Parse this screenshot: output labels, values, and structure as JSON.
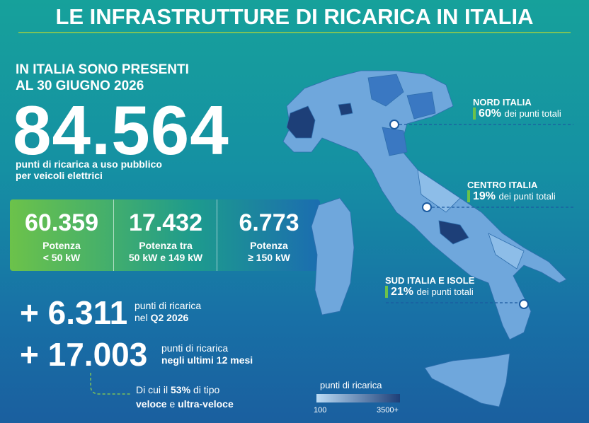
{
  "header": {
    "title": "LE INFRASTRUTTURE DI RICARICA IN ITALIA"
  },
  "intro": {
    "lines": [
      "IN ITALIA SONO PRESENTI",
      "AL 30 GIUGNO 2026"
    ],
    "total": "84.564",
    "caption": [
      "punti di ricarica a uso pubblico",
      "per veicoli elettrici"
    ]
  },
  "power_boxes": [
    {
      "value": "60.359",
      "label": [
        "Potenza",
        "< 50 kW"
      ]
    },
    {
      "value": "17.432",
      "label": [
        "Potenza tra",
        "50 kW e 149 kW"
      ]
    },
    {
      "value": "6.773",
      "label": [
        "Potenza",
        "≥ 150 kW"
      ]
    }
  ],
  "growth": [
    {
      "value": "+ 6.311",
      "text": "punti di ricarica",
      "text2": "nel",
      "text2_bold": "Q2 2026"
    },
    {
      "value": "+ 17.003",
      "text": "punti di ricarica",
      "text2_bold": "negli ultimi 12 mesi"
    }
  ],
  "note": {
    "part1": "Di cui il",
    "pct": "53%",
    "part2": "di tipo",
    "fast": "veloce",
    "and": "e",
    "ultra": "ultra-veloce"
  },
  "regions": [
    {
      "name": "NORD ITALIA",
      "pct": "60%",
      "text": "dei punti totali"
    },
    {
      "name": "CENTRO ITALIA",
      "pct": "19%",
      "text": "dei punti totali"
    },
    {
      "name": "SUD ITALIA E ISOLE",
      "pct": "21%",
      "text": "dei punti totali"
    }
  ],
  "legend": {
    "title": "punti di ricarica",
    "min": "100",
    "max": "3500+"
  }
}
